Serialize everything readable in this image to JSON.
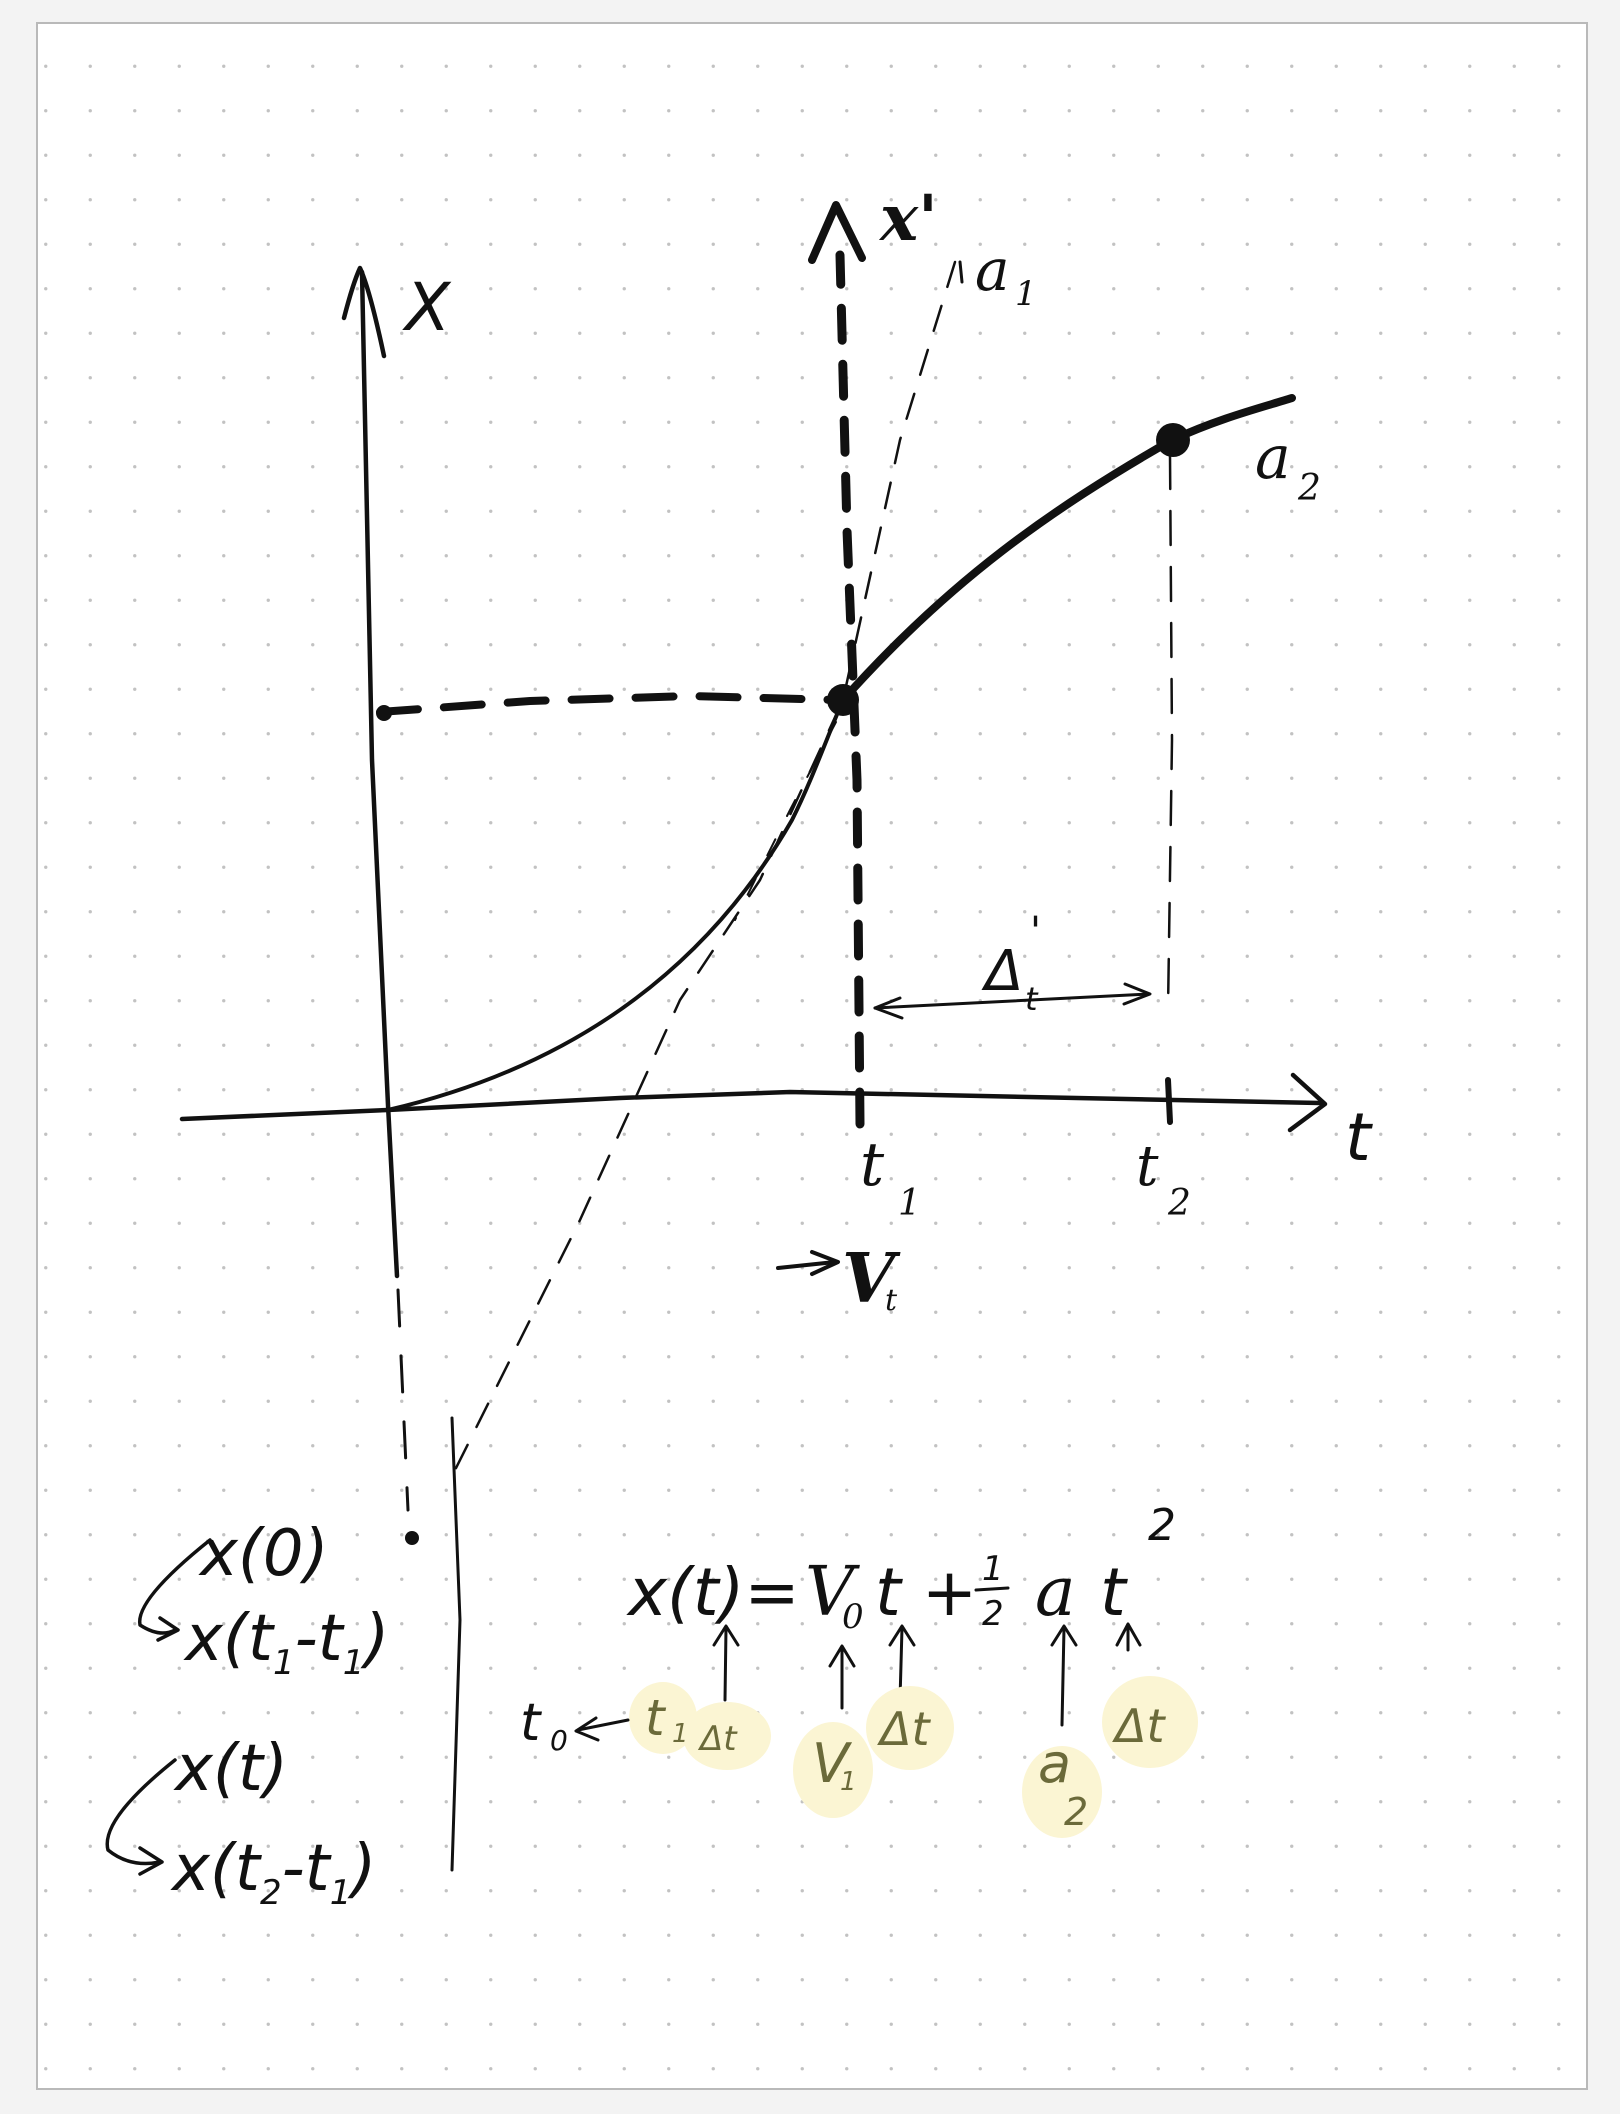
{
  "diagram": {
    "axis_labels": {
      "x_axis": "X",
      "x_prime_axis": "x'",
      "t_axis": "t"
    },
    "curve_labels": {
      "first_curve": "a",
      "first_curve_sub": "1",
      "second_curve": "a",
      "second_curve_sub": "2"
    },
    "tick_labels": {
      "t1": "t",
      "t1_sub": "1",
      "t2": "t",
      "t2_sub": "2"
    },
    "velocity_marker": "V",
    "velocity_marker_sub": "t",
    "delta_label": "Δ",
    "delta_sub": "t",
    "delta_prime": "'"
  },
  "notes": {
    "shift_0": "x(0)",
    "shift_1": "x(t",
    "shift_1_sub_a": "1",
    "shift_1_mid": "-t",
    "shift_1_sub_b": "1",
    "shift_1_end": ")",
    "shift_2": "x(t)",
    "shift_3": "x(t",
    "shift_3_sub_a": "2",
    "shift_3_mid": "-t",
    "shift_3_sub_b": "1",
    "shift_3_end": ")"
  },
  "equation": {
    "lhs": "x(t)=",
    "v": "V",
    "v_sub": "0",
    "t_term": "t +",
    "half_num": "1",
    "half_den": "2",
    "a_term": "a",
    "t_sq": "t",
    "exponent": "2"
  },
  "substitutions": {
    "t0": "t",
    "t0_sub": "0",
    "t1": "t",
    "t1_sub": "1",
    "dt_1": "Δt",
    "v1": "V",
    "v1_sub": "1",
    "dt_2": "Δt",
    "a2": "a",
    "a2_sub": "2",
    "dt_3": "Δt"
  }
}
